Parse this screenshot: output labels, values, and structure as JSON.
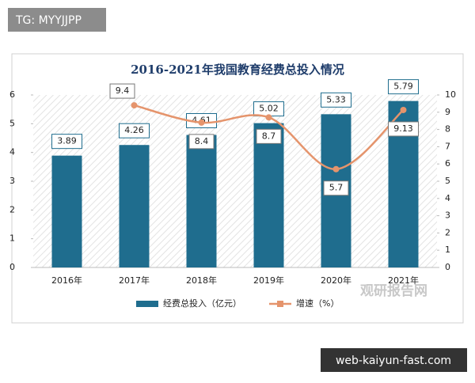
{
  "chart_data": {
    "type": "bar-line",
    "title": "2016-2021年我国教育经费总投入情况",
    "categories": [
      "2016年",
      "2017年",
      "2018年",
      "2019年",
      "2020年",
      "2021年"
    ],
    "series": [
      {
        "name": "经费总投入（亿元）",
        "type": "bar",
        "color": "#1f6d8e",
        "values": [
          3.89,
          4.26,
          4.61,
          5.02,
          5.33,
          5.79
        ]
      },
      {
        "name": "增速（%）",
        "type": "line",
        "axis": "y2",
        "color": "#e5946c",
        "values": [
          null,
          9.4,
          8.4,
          8.7,
          5.7,
          9.13
        ]
      }
    ],
    "ylim": [
      0,
      6
    ],
    "yticks": [
      0,
      1,
      2,
      3,
      4,
      5,
      6
    ],
    "y2lim": [
      0,
      10
    ],
    "y2ticks": [
      0,
      1,
      2,
      3,
      4,
      5,
      6,
      7,
      8,
      9,
      10
    ],
    "grid": false,
    "legend": "bottom"
  },
  "watermarks": {
    "top_left": "TG: MYYJJPP",
    "logo": "观研报告网",
    "bottom_right": "web-kaiyun-fast.com"
  }
}
